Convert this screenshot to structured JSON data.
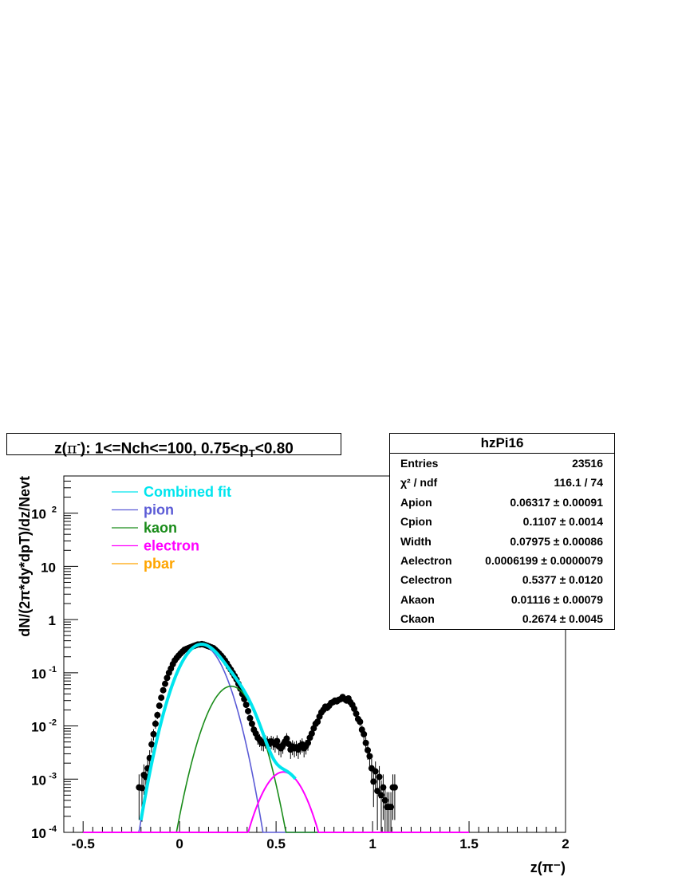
{
  "title": {
    "prefix": "z(",
    "pi": "π",
    "pi_sup": "-",
    "mid": "): 1<=Nch<=100, 0.75<p",
    "sub": "T",
    "suffix": "<0.80"
  },
  "stats": {
    "name": "hzPi16",
    "rows": [
      {
        "label": "Entries",
        "value": "23516"
      },
      {
        "label": "χ² / ndf",
        "value": "116.1 / 74"
      },
      {
        "label": "Apion",
        "value": "0.06317 ± 0.00091"
      },
      {
        "label": "Cpion",
        "value": "0.1107 ± 0.0014"
      },
      {
        "label": "Width",
        "value": "0.07975 ± 0.00086"
      },
      {
        "label": "Aelectron",
        "value": "0.0006199 ± 0.0000079"
      },
      {
        "label": "Celectron",
        "value": "0.5377 ± 0.0120"
      },
      {
        "label": "Akaon",
        "value": "0.01116 ± 0.00079"
      },
      {
        "label": "Ckaon",
        "value": "0.2674 ± 0.0045"
      }
    ]
  },
  "colors": {
    "combined": "#00e5ee",
    "pion": "#5b5bd6",
    "kaon": "#1a8c1a",
    "electron": "#ff00ff",
    "pbar": "#ffa500",
    "data": "#000000"
  },
  "chart_data": {
    "type": "scatter",
    "xlabel": "z(π⁻)",
    "ylabel": "dN/(2π*dy*dpT)/dz/Nevt",
    "xlim": [
      -0.6,
      2.0
    ],
    "ylim": [
      0.0001,
      500
    ],
    "log_y": true,
    "x_ticks": [
      -0.5,
      0,
      0.5,
      1,
      1.5,
      2
    ],
    "x_tick_labels": [
      "-0.5",
      "0",
      "0.5",
      "1",
      "1.5",
      "2"
    ],
    "y_ticks": [
      0.0001,
      0.001,
      0.01,
      0.1,
      1,
      10,
      100
    ],
    "legend": [
      "Combined fit",
      "pion",
      "kaon",
      "electron",
      "pbar"
    ],
    "legend_position": "top-left",
    "fit": {
      "Apion": 0.06317,
      "Cpion": 0.1107,
      "Width": 0.07975,
      "Akaon": 0.01116,
      "Ckaon": 0.2674,
      "Aelectron": 0.0006199,
      "Celectron": 0.5377,
      "combined_range": [
        -0.2,
        0.6
      ]
    },
    "data_points": [
      [
        -0.21,
        0.0007
      ],
      [
        -0.195,
        0.00068
      ],
      [
        -0.185,
        0.0012
      ],
      [
        -0.175,
        0.0011
      ],
      [
        -0.165,
        0.0016
      ],
      [
        -0.155,
        0.0025
      ],
      [
        -0.145,
        0.0045
      ],
      [
        -0.135,
        0.007
      ],
      [
        -0.125,
        0.011
      ],
      [
        -0.115,
        0.016
      ],
      [
        -0.105,
        0.024
      ],
      [
        -0.095,
        0.034
      ],
      [
        -0.085,
        0.047
      ],
      [
        -0.075,
        0.062
      ],
      [
        -0.065,
        0.08
      ],
      [
        -0.055,
        0.1
      ],
      [
        -0.045,
        0.12
      ],
      [
        -0.035,
        0.145
      ],
      [
        -0.025,
        0.17
      ],
      [
        -0.015,
        0.19
      ],
      [
        -0.005,
        0.21
      ],
      [
        0.005,
        0.23
      ],
      [
        0.015,
        0.25
      ],
      [
        0.025,
        0.27
      ],
      [
        0.035,
        0.28
      ],
      [
        0.045,
        0.29
      ],
      [
        0.055,
        0.3
      ],
      [
        0.065,
        0.31
      ],
      [
        0.075,
        0.32
      ],
      [
        0.085,
        0.33
      ],
      [
        0.095,
        0.34
      ],
      [
        0.105,
        0.34
      ],
      [
        0.115,
        0.345
      ],
      [
        0.125,
        0.34
      ],
      [
        0.135,
        0.33
      ],
      [
        0.145,
        0.32
      ],
      [
        0.155,
        0.31
      ],
      [
        0.165,
        0.3
      ],
      [
        0.175,
        0.29
      ],
      [
        0.185,
        0.27
      ],
      [
        0.195,
        0.25
      ],
      [
        0.205,
        0.23
      ],
      [
        0.215,
        0.21
      ],
      [
        0.225,
        0.19
      ],
      [
        0.235,
        0.17
      ],
      [
        0.245,
        0.15
      ],
      [
        0.255,
        0.13
      ],
      [
        0.265,
        0.115
      ],
      [
        0.275,
        0.1
      ],
      [
        0.285,
        0.087
      ],
      [
        0.295,
        0.075
      ],
      [
        0.305,
        0.062
      ],
      [
        0.315,
        0.05
      ],
      [
        0.325,
        0.04
      ],
      [
        0.335,
        0.032
      ],
      [
        0.345,
        0.025
      ],
      [
        0.355,
        0.019
      ],
      [
        0.365,
        0.014
      ],
      [
        0.375,
        0.011
      ],
      [
        0.385,
        0.0085
      ],
      [
        0.395,
        0.0072
      ],
      [
        0.405,
        0.006
      ],
      [
        0.415,
        0.0055
      ],
      [
        0.425,
        0.0048
      ],
      [
        0.435,
        0.0047
      ],
      [
        0.445,
        0.0052
      ],
      [
        0.455,
        0.005
      ],
      [
        0.465,
        0.0046
      ],
      [
        0.475,
        0.0051
      ],
      [
        0.485,
        0.0049
      ],
      [
        0.495,
        0.0045
      ],
      [
        0.505,
        0.0052
      ],
      [
        0.515,
        0.0041
      ],
      [
        0.525,
        0.0038
      ],
      [
        0.535,
        0.0043
      ],
      [
        0.545,
        0.005
      ],
      [
        0.555,
        0.0058
      ],
      [
        0.565,
        0.0046
      ],
      [
        0.575,
        0.0036
      ],
      [
        0.585,
        0.0041
      ],
      [
        0.595,
        0.0038
      ],
      [
        0.605,
        0.004
      ],
      [
        0.615,
        0.0036
      ],
      [
        0.625,
        0.0042
      ],
      [
        0.635,
        0.0045
      ],
      [
        0.645,
        0.0038
      ],
      [
        0.655,
        0.0042
      ],
      [
        0.665,
        0.0048
      ],
      [
        0.675,
        0.006
      ],
      [
        0.685,
        0.0072
      ],
      [
        0.695,
        0.009
      ],
      [
        0.705,
        0.011
      ],
      [
        0.715,
        0.012
      ],
      [
        0.725,
        0.015
      ],
      [
        0.735,
        0.018
      ],
      [
        0.745,
        0.02
      ],
      [
        0.755,
        0.023
      ],
      [
        0.765,
        0.022
      ],
      [
        0.775,
        0.024
      ],
      [
        0.785,
        0.027
      ],
      [
        0.795,
        0.028
      ],
      [
        0.805,
        0.03
      ],
      [
        0.815,
        0.029
      ],
      [
        0.825,
        0.031
      ],
      [
        0.835,
        0.032
      ],
      [
        0.845,
        0.035
      ],
      [
        0.855,
        0.032
      ],
      [
        0.865,
        0.03
      ],
      [
        0.875,
        0.033
      ],
      [
        0.885,
        0.028
      ],
      [
        0.895,
        0.025
      ],
      [
        0.905,
        0.021
      ],
      [
        0.915,
        0.017
      ],
      [
        0.925,
        0.0135
      ],
      [
        0.935,
        0.012
      ],
      [
        0.945,
        0.0085
      ],
      [
        0.955,
        0.007
      ],
      [
        0.965,
        0.0048
      ],
      [
        0.975,
        0.0035
      ],
      [
        0.985,
        0.0027
      ],
      [
        0.995,
        0.0016
      ],
      [
        1.005,
        0.0009
      ],
      [
        1.015,
        0.0014
      ],
      [
        1.025,
        0.0006
      ],
      [
        1.035,
        0.0011
      ],
      [
        1.045,
        0.0005
      ],
      [
        1.055,
        0.0007
      ],
      [
        1.065,
        0.0004
      ],
      [
        1.075,
        0.0003
      ],
      [
        1.085,
        0.0003
      ],
      [
        1.095,
        0.0003
      ],
      [
        1.105,
        0.0007
      ],
      [
        1.115,
        0.0007
      ]
    ]
  }
}
